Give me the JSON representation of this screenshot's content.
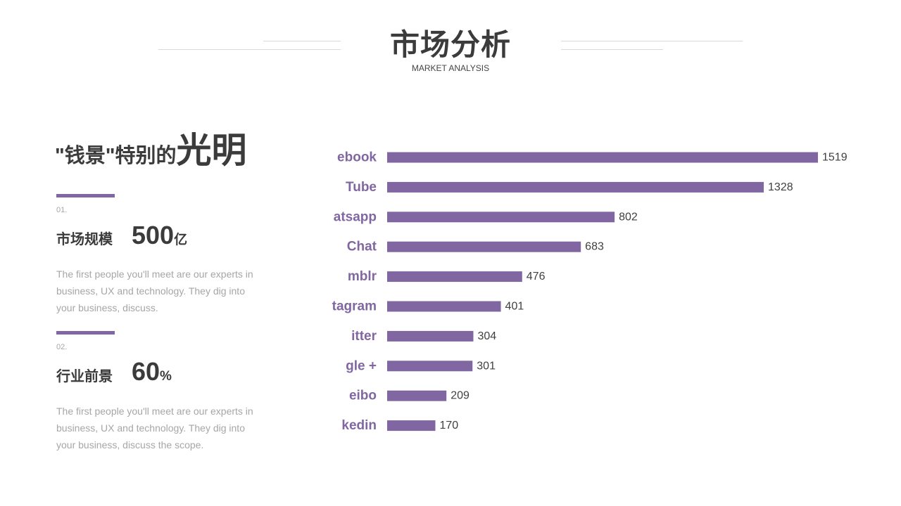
{
  "header": {
    "title": "市场分析",
    "subtitle": "MARKET ANALYSIS"
  },
  "headline": {
    "small": "\"钱景\"特别的",
    "big": "光明"
  },
  "items": [
    {
      "number": "01.",
      "label": "市场规模",
      "value": "500",
      "unit": "亿",
      "description": "The first people you'll meet are our experts in business, UX and technology. They dig into your business, discuss."
    },
    {
      "number": "02.",
      "label": "行业前景",
      "value": "60",
      "unit": "%",
      "description": "The first people you'll meet are our experts in business, UX and technology. They dig into your business, discuss the scope."
    }
  ],
  "colors": {
    "accent": "#8067a2",
    "title": "#3b3b3b",
    "muted": "#a6a6a6"
  },
  "chart_data": {
    "type": "bar",
    "orientation": "horizontal",
    "categories": [
      "ebook",
      "Tube",
      "atsapp",
      "Chat",
      "mblr",
      "tagram",
      "itter",
      "gle +",
      "eibo",
      "kedin"
    ],
    "values": [
      1519,
      1328,
      802,
      683,
      476,
      401,
      304,
      301,
      209,
      170
    ],
    "title": "",
    "xlabel": "",
    "ylabel": "",
    "xlim": [
      0,
      1519
    ],
    "grid": false,
    "legend": "none",
    "data_labels": true,
    "bar_color": "#8067a2"
  }
}
